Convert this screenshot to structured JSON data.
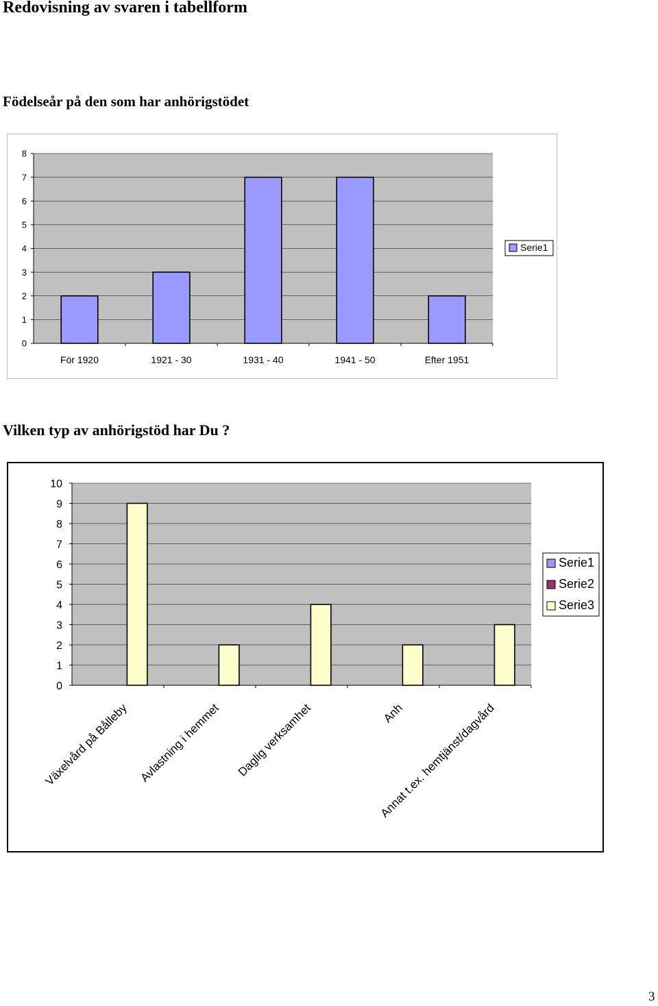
{
  "document": {
    "heading": "Redovisning av svaren i tabellform",
    "page_number": "3"
  },
  "charts": {
    "birth_year": {
      "title": "Födelseår på den som har anhörigstödet",
      "legend": "Serie1"
    },
    "support_type": {
      "title": "Vilken typ av anhörigstöd har Du ?",
      "legend": [
        "Serie1",
        "Serie2",
        "Serie3"
      ]
    }
  },
  "chart_data": [
    {
      "type": "bar",
      "title": "Födelseår på den som har anhörigstödet",
      "categories": [
        "För 1920",
        "1921 - 30",
        "1931 - 40",
        "1941 - 50",
        "Efter 1951"
      ],
      "series": [
        {
          "name": "Serie1",
          "values": [
            2,
            3,
            7,
            7,
            2
          ],
          "color": "#9999ff"
        }
      ],
      "ylim": [
        0,
        8
      ],
      "yticks": [
        0,
        1,
        2,
        3,
        4,
        5,
        6,
        7,
        8
      ],
      "grid": true,
      "plot_background": "#c0c0c0",
      "legend_position": "right"
    },
    {
      "type": "bar",
      "title": "Vilken typ av anhörigstöd har Du ?",
      "categories": [
        "Växelvård på Bålleby",
        "Avlastning i hemmet",
        "Daglig verksamhet",
        "Anh",
        "Annat t.ex. hemtjänst/dagvård"
      ],
      "series": [
        {
          "name": "Serie1",
          "values": [
            0,
            0,
            0,
            0,
            0
          ],
          "color": "#9999ff"
        },
        {
          "name": "Serie2",
          "values": [
            0,
            0,
            0,
            0,
            0
          ],
          "color": "#993366"
        },
        {
          "name": "Serie3",
          "values": [
            9,
            2,
            4,
            2,
            3
          ],
          "color": "#ffffcc"
        }
      ],
      "ylim": [
        0,
        10
      ],
      "yticks": [
        0,
        1,
        2,
        3,
        4,
        5,
        6,
        7,
        8,
        9,
        10
      ],
      "grid": true,
      "plot_background": "#c0c0c0",
      "legend_position": "right"
    }
  ]
}
